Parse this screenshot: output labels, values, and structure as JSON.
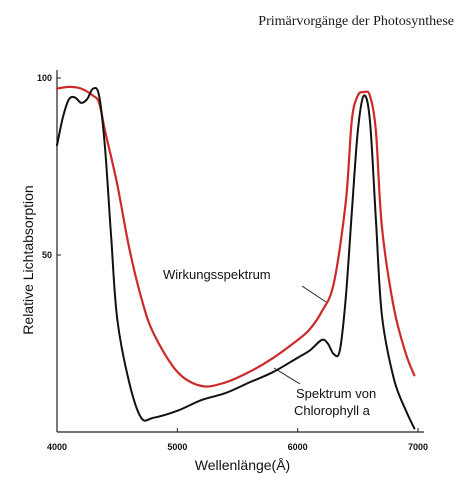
{
  "header": {
    "text": "Primärvorgänge der Photosynthese"
  },
  "chart_data": {
    "type": "line",
    "title": "",
    "xlabel": "Wellenlänge(Å)",
    "ylabel": "Relative Lichtabsorption",
    "xlim": [
      4000,
      7000
    ],
    "ylim": [
      0,
      100
    ],
    "x_ticks": [
      "4000",
      "5000",
      "6000",
      "7000"
    ],
    "y_ticks": [
      "50",
      "100"
    ],
    "grid": false,
    "series": [
      {
        "name": "Wirkungsspektrum",
        "color": "#cc2a2a",
        "x": [
          4000,
          4100,
          4200,
          4300,
          4350,
          4400,
          4500,
          4600,
          4700,
          4800,
          5000,
          5200,
          5400,
          5600,
          5800,
          6000,
          6100,
          6200,
          6300,
          6400,
          6450,
          6500,
          6550,
          6600,
          6650,
          6700,
          6800,
          6900,
          6970
        ],
        "y": [
          97,
          97.5,
          97,
          95,
          93,
          85,
          70,
          52,
          38,
          28,
          17,
          13,
          14,
          17,
          21,
          26,
          29,
          34,
          42,
          65,
          88,
          95,
          96,
          95,
          85,
          58,
          35,
          22,
          16
        ]
      },
      {
        "name": "Spektrum von Chlorophyll a",
        "color": "#111111",
        "x": [
          4000,
          4050,
          4100,
          4150,
          4200,
          4250,
          4300,
          4350,
          4400,
          4450,
          4500,
          4600,
          4700,
          4800,
          5000,
          5200,
          5400,
          5600,
          5800,
          6000,
          6100,
          6200,
          6250,
          6300,
          6350,
          6400,
          6450,
          6500,
          6550,
          6600,
          6650,
          6700,
          6800,
          6900,
          6970
        ],
        "y": [
          81,
          89,
          94,
          94.5,
          93,
          94,
          97,
          95,
          80,
          55,
          32,
          14,
          4,
          4,
          6,
          9,
          11,
          14,
          17,
          21,
          23,
          26,
          25,
          22,
          23,
          38,
          62,
          85,
          95,
          88,
          60,
          33,
          15,
          6,
          1
        ]
      }
    ],
    "annotations": [
      {
        "line1": "Wirkungsspektrum",
        "line2": ""
      },
      {
        "line1": "Spektrum von",
        "line2": "Chlorophyll a"
      }
    ]
  }
}
